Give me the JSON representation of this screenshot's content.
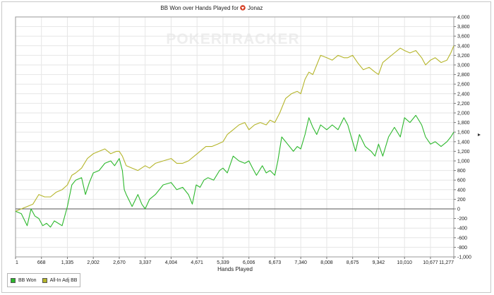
{
  "chart_data": {
    "type": "line",
    "title": "BB Won over Hands Played for",
    "player": "Jonaz",
    "watermark": "POKERTRACKER",
    "xlabel": "Hands Played",
    "ylabel": "",
    "xlim": [
      1,
      11277
    ],
    "ylim": [
      -1000,
      4000
    ],
    "x_ticks": [
      1,
      668,
      1335,
      2002,
      2670,
      3337,
      4004,
      4671,
      5339,
      6006,
      6673,
      7340,
      8008,
      8675,
      9342,
      10010,
      10677,
      11277
    ],
    "x_tick_labels": [
      "1",
      "668",
      "1,335",
      "2,002",
      "2,670",
      "3,337",
      "4,004",
      "4,671",
      "5,339",
      "6,006",
      "6,673",
      "7,340",
      "8,008",
      "8,675",
      "9,342",
      "10,010",
      "10,677",
      "11,277"
    ],
    "y_ticks": [
      -1000,
      -800,
      -600,
      -400,
      -200,
      0,
      200,
      400,
      600,
      800,
      1000,
      1200,
      1400,
      1600,
      1800,
      2000,
      2200,
      2400,
      2600,
      2800,
      3000,
      3200,
      3400,
      3600,
      3800,
      4000
    ],
    "y_tick_labels": [
      "-1,000",
      "-800",
      "-600",
      "-400",
      "-200",
      "0",
      "200",
      "400",
      "600",
      "800",
      "1,000",
      "1,200",
      "1,400",
      "1,600",
      "1,800",
      "2,000",
      "2,200",
      "2,400",
      "2,600",
      "2,800",
      "3,000",
      "3,200",
      "3,400",
      "3,600",
      "3,800",
      "4,000"
    ],
    "grid": true,
    "legend_position": "bottom-left",
    "series": [
      {
        "name": "BB Won",
        "color": "#2db82d",
        "x": [
          1,
          150,
          300,
          400,
          500,
          600,
          700,
          800,
          900,
          1000,
          1100,
          1200,
          1335,
          1450,
          1550,
          1700,
          1800,
          1900,
          2002,
          2150,
          2300,
          2450,
          2550,
          2670,
          2750,
          2800,
          2850,
          3000,
          3150,
          3250,
          3337,
          3450,
          3600,
          3800,
          4004,
          4150,
          4300,
          4450,
          4550,
          4650,
          4750,
          4850,
          4950,
          5100,
          5250,
          5339,
          5450,
          5600,
          5750,
          5900,
          6006,
          6100,
          6200,
          6350,
          6450,
          6550,
          6673,
          6750,
          6850,
          7000,
          7150,
          7250,
          7340,
          7450,
          7550,
          7650,
          7750,
          7850,
          8008,
          8150,
          8300,
          8450,
          8550,
          8675,
          8750,
          8850,
          9000,
          9150,
          9250,
          9342,
          9450,
          9600,
          9750,
          9900,
          10010,
          10150,
          10300,
          10450,
          10550,
          10677,
          10800,
          10950,
          11100,
          11200,
          11277
        ],
        "y": [
          -50,
          -100,
          -350,
          0,
          -150,
          -200,
          -350,
          -300,
          -380,
          -250,
          -300,
          -350,
          50,
          500,
          600,
          650,
          300,
          550,
          750,
          800,
          950,
          1000,
          900,
          1050,
          800,
          400,
          300,
          50,
          300,
          100,
          0,
          200,
          300,
          500,
          550,
          400,
          450,
          300,
          100,
          500,
          450,
          600,
          650,
          600,
          800,
          850,
          750,
          1100,
          1000,
          950,
          1000,
          850,
          700,
          900,
          750,
          800,
          700,
          1000,
          1500,
          1350,
          1200,
          1300,
          1250,
          1550,
          1900,
          1700,
          1550,
          1750,
          1650,
          1750,
          1650,
          1900,
          1750,
          1400,
          1200,
          1550,
          1300,
          1200,
          1100,
          1350,
          1100,
          1500,
          1700,
          1500,
          1900,
          1800,
          1950,
          1750,
          1500,
          1350,
          1400,
          1300,
          1400,
          1500,
          1600
        ]
      },
      {
        "name": "All-In Adj BB",
        "color": "#b5b52a",
        "x": [
          1,
          150,
          300,
          450,
          600,
          750,
          900,
          1050,
          1200,
          1335,
          1450,
          1550,
          1700,
          1850,
          2002,
          2150,
          2300,
          2450,
          2600,
          2670,
          2750,
          2850,
          3000,
          3150,
          3337,
          3450,
          3600,
          3800,
          4004,
          4150,
          4300,
          4450,
          4600,
          4750,
          4900,
          5050,
          5200,
          5339,
          5450,
          5600,
          5750,
          5900,
          6006,
          6150,
          6300,
          6450,
          6550,
          6673,
          6800,
          6950,
          7100,
          7250,
          7340,
          7450,
          7550,
          7650,
          7750,
          7850,
          8008,
          8150,
          8300,
          8450,
          8550,
          8675,
          8800,
          8950,
          9100,
          9250,
          9342,
          9450,
          9600,
          9750,
          9900,
          10010,
          10150,
          10300,
          10450,
          10550,
          10677,
          10800,
          10950,
          11100,
          11200,
          11277
        ],
        "y": [
          -50,
          0,
          50,
          100,
          300,
          250,
          250,
          350,
          400,
          500,
          700,
          750,
          850,
          1050,
          1150,
          1200,
          1250,
          1150,
          1200,
          1200,
          1100,
          900,
          850,
          800,
          900,
          850,
          950,
          1000,
          1050,
          950,
          950,
          1000,
          1100,
          1200,
          1300,
          1300,
          1350,
          1400,
          1550,
          1650,
          1750,
          1800,
          1650,
          1750,
          1800,
          1750,
          1850,
          1800,
          2000,
          2300,
          2400,
          2450,
          2400,
          2700,
          2850,
          2800,
          3000,
          3200,
          3150,
          3100,
          3200,
          3150,
          3150,
          3200,
          3050,
          2900,
          2950,
          2850,
          2800,
          3050,
          3150,
          3250,
          3350,
          3300,
          3250,
          3300,
          3150,
          3000,
          3100,
          3150,
          3050,
          3100,
          3250,
          3400
        ]
      }
    ]
  }
}
